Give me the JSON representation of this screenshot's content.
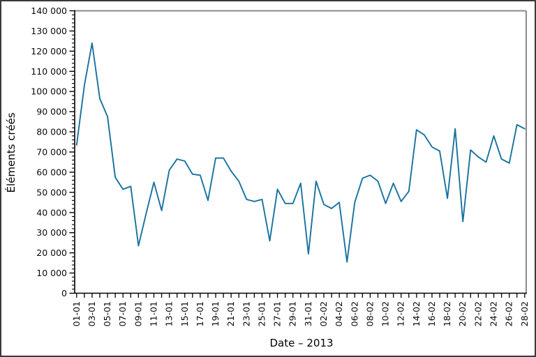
{
  "figure": {
    "background": "#ffffff",
    "border_color": "#3a3a3a"
  },
  "chart_data": {
    "type": "line",
    "title": "",
    "xlabel": "Date – 2013",
    "ylabel": "Éléments créés",
    "line_color": "#17719f",
    "spine_color_dark": "#000000",
    "spine_color_light": "#8a8a8a",
    "tick_label_color": "#0a0a0a",
    "grid": false,
    "legend": null,
    "ylim": [
      0,
      140000
    ],
    "y_major_step": 10000,
    "y_minor_step": 2000,
    "y_tick_labels": [
      "0",
      "10 000",
      "20 000",
      "30 000",
      "40 000",
      "50 000",
      "60 000",
      "70 000",
      "80 000",
      "90 000",
      "100 000",
      "110 000",
      "120 000",
      "130 000",
      "140 000"
    ],
    "x_tick_labels": [
      "01-01",
      "03-01",
      "05-01",
      "07-01",
      "09-01",
      "11-01",
      "13-01",
      "15-01",
      "17-01",
      "19-01",
      "21-01",
      "23-01",
      "25-01",
      "27-01",
      "29-01",
      "31-01",
      "02-02",
      "04-02",
      "06-02",
      "08-02",
      "10-02",
      "12-02",
      "14-02",
      "16-02",
      "18-02",
      "20-02",
      "22-02",
      "24-02",
      "26-02",
      "28-02"
    ],
    "categories": [
      "01-01",
      "02-01",
      "03-01",
      "04-01",
      "05-01",
      "06-01",
      "07-01",
      "08-01",
      "09-01",
      "10-01",
      "11-01",
      "12-01",
      "13-01",
      "14-01",
      "15-01",
      "16-01",
      "17-01",
      "18-01",
      "19-01",
      "20-01",
      "21-01",
      "22-01",
      "23-01",
      "24-01",
      "25-01",
      "26-01",
      "27-01",
      "28-01",
      "29-01",
      "30-01",
      "31-01",
      "01-02",
      "02-02",
      "03-02",
      "04-02",
      "05-02",
      "06-02",
      "07-02",
      "08-02",
      "09-02",
      "10-02",
      "11-02",
      "12-02",
      "13-02",
      "14-02",
      "15-02",
      "16-02",
      "17-02",
      "18-02",
      "19-02",
      "20-02",
      "21-02",
      "22-02",
      "23-02",
      "24-02",
      "25-02",
      "26-02",
      "27-02",
      "28-02"
    ],
    "values": [
      73500,
      103000,
      124000,
      96500,
      87500,
      57500,
      51500,
      53000,
      23500,
      39500,
      55000,
      41000,
      61000,
      66500,
      65500,
      59000,
      58500,
      46000,
      67000,
      67000,
      60500,
      55500,
      46500,
      45500,
      46500,
      26000,
      51500,
      44500,
      44500,
      54500,
      19500,
      55500,
      44000,
      42000,
      45000,
      15500,
      45000,
      57000,
      58500,
      55500,
      44500,
      54500,
      45500,
      50500,
      81000,
      78500,
      72500,
      70500,
      47000,
      81500,
      35500,
      71000,
      67500,
      65000,
      78000,
      66500,
      64500,
      83500,
      81500
    ]
  }
}
